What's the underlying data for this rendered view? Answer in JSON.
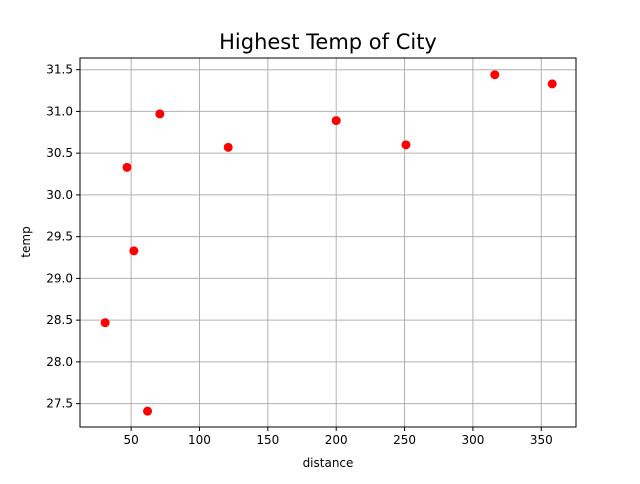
{
  "chart_data": {
    "type": "scatter",
    "title": "Highest Temp of City",
    "xlabel": "distance",
    "ylabel": "temp",
    "xlim": [
      12.6,
      375.4
    ],
    "ylim": [
      27.22,
      31.64
    ],
    "x_ticks": [
      50,
      100,
      150,
      200,
      250,
      300,
      350
    ],
    "y_ticks": [
      27.5,
      28.0,
      28.5,
      29.0,
      29.5,
      30.0,
      30.5,
      31.0,
      31.5
    ],
    "x_tick_labels": [
      "50",
      "100",
      "150",
      "200",
      "250",
      "300",
      "350"
    ],
    "y_tick_labels": [
      "27.5",
      "28.0",
      "28.5",
      "29.0",
      "29.5",
      "30.0",
      "30.5",
      "31.0",
      "31.5"
    ],
    "grid": true,
    "point_color": "#ff0000",
    "points": [
      {
        "x": 31,
        "y": 28.47
      },
      {
        "x": 47,
        "y": 30.33
      },
      {
        "x": 52,
        "y": 29.33
      },
      {
        "x": 62,
        "y": 27.41
      },
      {
        "x": 71,
        "y": 30.97
      },
      {
        "x": 121,
        "y": 30.57
      },
      {
        "x": 200,
        "y": 30.89
      },
      {
        "x": 251,
        "y": 30.6
      },
      {
        "x": 316,
        "y": 31.44
      },
      {
        "x": 358,
        "y": 31.33
      }
    ]
  }
}
